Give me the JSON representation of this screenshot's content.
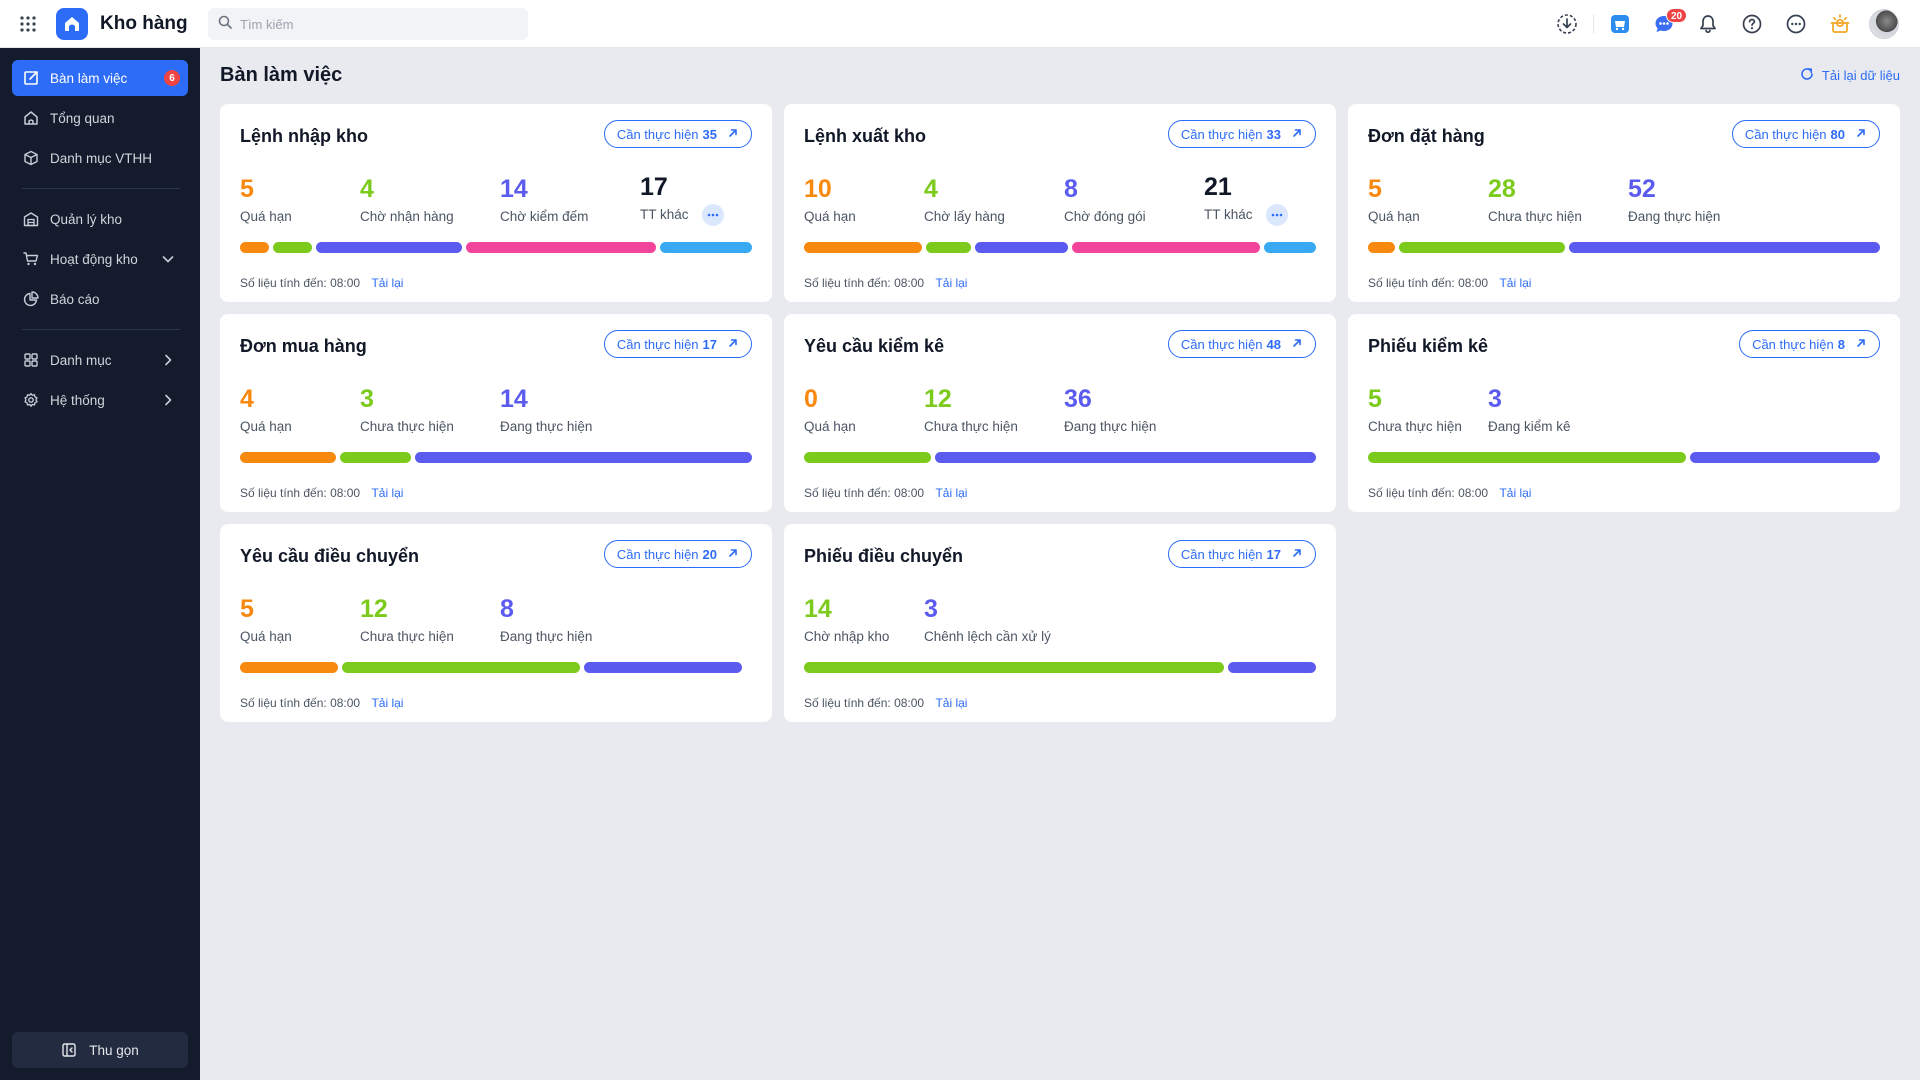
{
  "app": {
    "title": "Kho hàng",
    "search_placeholder": "Tìm kiếm",
    "chat_badge": "20"
  },
  "sidebar": {
    "items": [
      {
        "label": "Bàn làm việc",
        "badge": "6",
        "icon": "desk-icon",
        "active": true
      },
      {
        "label": "Tổng quan",
        "icon": "home-icon"
      },
      {
        "label": "Danh mục VTHH",
        "icon": "box-icon"
      },
      {
        "label": "Quản lý kho",
        "icon": "warehouse-icon"
      },
      {
        "label": "Hoạt động kho",
        "icon": "cart-icon",
        "chevron": "down"
      },
      {
        "label": "Báo cáo",
        "icon": "report-icon"
      },
      {
        "label": "Danh mục",
        "icon": "grid-icon",
        "chevron": "right"
      },
      {
        "label": "Hệ thống",
        "icon": "gear-icon",
        "chevron": "right"
      }
    ],
    "collapse_label": "Thu gọn"
  },
  "page": {
    "title": "Bàn làm việc",
    "reload_all": "Tải lại dữ liệu"
  },
  "colors": {
    "orange": "#f7890f",
    "green": "#7ccb1c",
    "purple": "#5b5bf0",
    "pink": "#f2449b",
    "sky": "#38a9f2",
    "black": "#111827",
    "accent": "#2d6cf6"
  },
  "cards": [
    {
      "title": "Lệnh nhập kho",
      "todo_label": "Cần thực hiện",
      "todo_count": "35",
      "stats": [
        {
          "value": "5",
          "label": "Quá hạn"
        },
        {
          "value": "4",
          "label": "Chờ nhận hàng"
        },
        {
          "value": "14",
          "label": "Chờ kiểm đếm"
        },
        {
          "value": "17",
          "label": "TT khác"
        }
      ],
      "footer": "Số liệu tính đến: 08:00",
      "reload": "Tải lại"
    },
    {
      "title": "Lệnh xuất kho",
      "todo_label": "Cần thực hiện",
      "todo_count": "33",
      "stats": [
        {
          "value": "10",
          "label": "Quá hạn"
        },
        {
          "value": "4",
          "label": "Chờ lấy hàng"
        },
        {
          "value": "8",
          "label": "Chờ đóng gói"
        },
        {
          "value": "21",
          "label": "TT khác"
        }
      ],
      "footer": "Số liệu tính đến: 08:00",
      "reload": "Tải lại"
    },
    {
      "title": "Đơn đặt hàng",
      "todo_label": "Cần thực hiện",
      "todo_count": "80",
      "stats": [
        {
          "value": "5",
          "label": "Quá hạn"
        },
        {
          "value": "28",
          "label": "Chưa thực hiện"
        },
        {
          "value": "52",
          "label": "Đang thực hiện"
        }
      ],
      "footer": "Số liệu tính đến: 08:00",
      "reload": "Tải lại"
    },
    {
      "title": "Đơn mua hàng",
      "todo_label": "Cần thực hiện",
      "todo_count": "17",
      "stats": [
        {
          "value": "4",
          "label": "Quá hạn"
        },
        {
          "value": "3",
          "label": "Chưa thực hiện"
        },
        {
          "value": "14",
          "label": "Đang thực hiện"
        }
      ],
      "footer": "Số liệu tính đến: 08:00",
      "reload": "Tải lại"
    },
    {
      "title": "Yêu cầu kiểm kê",
      "todo_label": "Cần thực hiện",
      "todo_count": "48",
      "stats": [
        {
          "value": "0",
          "label": "Quá hạn"
        },
        {
          "value": "12",
          "label": "Chưa thực hiện"
        },
        {
          "value": "36",
          "label": "Đang thực hiện"
        }
      ],
      "footer": "Số liệu tính đến: 08:00",
      "reload": "Tải lại"
    },
    {
      "title": "Phiếu kiểm kê",
      "todo_label": "Cần thực hiện",
      "todo_count": "8",
      "stats": [
        {
          "value": "5",
          "label": "Chưa thực hiện"
        },
        {
          "value": "3",
          "label": "Đang kiểm kê"
        }
      ],
      "footer": "Số liệu tính đến: 08:00",
      "reload": "Tải lại"
    },
    {
      "title": "Yêu cầu điều chuyển",
      "todo_label": "Cần thực hiện",
      "todo_count": "20",
      "stats": [
        {
          "value": "5",
          "label": "Quá hạn"
        },
        {
          "value": "12",
          "label": "Chưa thực hiện"
        },
        {
          "value": "8",
          "label": "Đang thực hiện"
        }
      ],
      "footer": "Số liệu tính đến: 08:00",
      "reload": "Tải lại"
    },
    {
      "title": "Phiếu điều chuyển",
      "todo_label": "Cần thực hiện",
      "todo_count": "17",
      "stats": [
        {
          "value": "14",
          "label": "Chờ nhập kho"
        },
        {
          "value": "3",
          "label": "Chênh lệch cần xử lý"
        }
      ],
      "footer": "Số liệu tính đến: 08:00",
      "reload": "Tải lại"
    }
  ]
}
